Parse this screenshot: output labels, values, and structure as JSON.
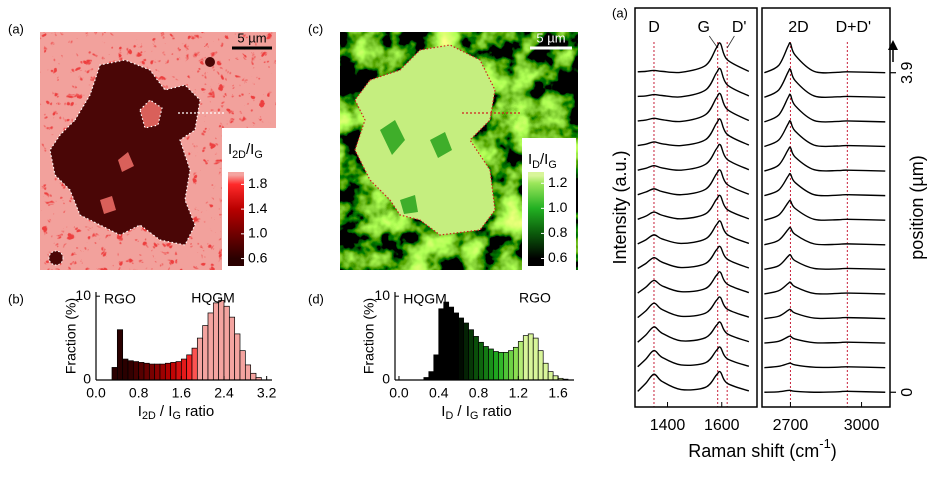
{
  "chart_data": [
    {
      "type": "map",
      "label": "(a)",
      "scale_bar": "5 µm",
      "scale_bar_color": "#000000",
      "colorbar_title": [
        "I",
        "2D",
        "/I",
        "G"
      ],
      "clim": [
        0.48,
        2.0
      ],
      "colorbar_ticks": [
        0.6,
        {
          "value": 1,
          "label": "1.0"
        },
        1.4,
        1.8
      ],
      "colormap": [
        {
          "value": 0.6,
          "color": "#2a0000"
        },
        {
          "value": 1,
          "color": "#700000"
        },
        {
          "value": 1.4,
          "color": "#b80000"
        },
        {
          "value": 1.8,
          "color": "#ff2a2a"
        },
        {
          "value": 1.95,
          "color": "#f4a4a0"
        }
      ]
    },
    {
      "type": "histogram",
      "label": "(b)",
      "ylabel": "Fraction (%)",
      "xlabel": [
        "I",
        "2D",
        " / I",
        "G",
        " ratio"
      ],
      "annotations": [
        "RGO",
        "HQGM"
      ],
      "bins": [
        0.3,
        0.4,
        0.5,
        0.6,
        0.7,
        0.8,
        0.9,
        1.0,
        1.1,
        1.2,
        1.3,
        1.4,
        1.5,
        1.6,
        1.7,
        1.8,
        1.9,
        2.0,
        2.1,
        2.2,
        2.3,
        2.4,
        2.5,
        2.6,
        2.7,
        2.8,
        2.9,
        3.0,
        3.1
      ],
      "values": [
        1.5,
        6,
        2.5,
        2.3,
        2.2,
        2.1,
        2.0,
        1.9,
        1.9,
        1.9,
        2.0,
        2.1,
        2.2,
        2.5,
        3.0,
        3.8,
        5.0,
        6.5,
        8.0,
        9.2,
        9.5,
        8.8,
        7.5,
        5.5,
        3.5,
        1.8,
        0.8,
        0.3
      ],
      "xlim": [
        0,
        3.3
      ],
      "xticks": [
        {
          "value": 0,
          "label": "0.0"
        },
        0.8,
        1.6,
        2.4,
        3.2
      ],
      "ylim": [
        0,
        10.5
      ],
      "yticks": [
        0,
        10
      ],
      "edgecolor": "#000000"
    },
    {
      "type": "map",
      "label": "(c)",
      "scale_bar": "5 µm",
      "scale_bar_color": "#ffffff",
      "colorbar_title": [
        "I",
        "D",
        "/I",
        "G"
      ],
      "clim": [
        0.54,
        1.29
      ],
      "colorbar_ticks": [
        0.6,
        0.8,
        {
          "value": 1,
          "label": "1.0"
        },
        1.2
      ],
      "colormap": [
        {
          "value": 0.6,
          "color": "#000000"
        },
        {
          "value": 0.8,
          "color": "#0b5a0b"
        },
        {
          "value": 1,
          "color": "#22b022"
        },
        {
          "value": 1.2,
          "color": "#9be65a"
        },
        {
          "value": 1.26,
          "color": "#d8f59a"
        }
      ]
    },
    {
      "type": "histogram",
      "label": "(d)",
      "ylabel": "Fraction (%)",
      "xlabel": [
        "I",
        "D",
        " / I",
        "G",
        " ratio"
      ],
      "annotations": [
        "HQGM",
        "RGO"
      ],
      "bins": [
        0.25,
        0.3,
        0.35,
        0.4,
        0.45,
        0.5,
        0.55,
        0.6,
        0.65,
        0.7,
        0.75,
        0.8,
        0.85,
        0.9,
        0.95,
        1.0,
        1.05,
        1.1,
        1.15,
        1.2,
        1.25,
        1.3,
        1.35,
        1.4,
        1.45,
        1.5,
        1.55,
        1.6,
        1.65,
        1.7
      ],
      "values": [
        0.3,
        1,
        3,
        8.5,
        9.3,
        8.7,
        8.0,
        7.4,
        6.8,
        6.0,
        5.2,
        4.5,
        4.0,
        3.7,
        3.4,
        3.3,
        3.3,
        3.5,
        3.9,
        4.6,
        5.3,
        5.5,
        5.0,
        3.5,
        2.0,
        1.0,
        0.5,
        0.2,
        0.1
      ],
      "xlim": [
        -0.04,
        1.76
      ],
      "xticks": [
        {
          "value": 0,
          "label": "0.0"
        },
        0.4,
        0.8,
        1.2,
        1.6
      ],
      "ylim": [
        0,
        10.5
      ],
      "yticks": [
        0,
        10
      ],
      "edgecolor": "#000000"
    },
    {
      "type": "spectra",
      "label": "(a)",
      "ylabel": "Intensity (a.u.)",
      "y2label": "position (µm)",
      "xlabel": [
        "Raman shift (cm",
        "-1",
        ")"
      ],
      "color": "#000000",
      "peak_color": "#c8203a",
      "ylim": [
        -0.18,
        4.69
      ],
      "yticks": [
        0,
        3.9
      ],
      "positions": [
        0,
        0.3,
        0.6,
        0.9,
        1.2,
        1.5,
        1.8,
        2.1,
        2.4,
        2.7,
        3.0,
        3.3,
        3.6,
        3.9
      ],
      "panels": [
        {
          "xlim": [
            1280,
            1730
          ],
          "xticks": [
            1400,
            1600
          ],
          "peaks": [
            {
              "label": "D",
              "x": 1350
            },
            {
              "label": "G",
              "x": 1585
            },
            {
              "label": "D'",
              "x": 1620
            }
          ],
          "x": [
            1290,
            1320,
            1350,
            1380,
            1450,
            1540,
            1580,
            1595,
            1620,
            1700
          ],
          "series": [
            {
              "values": [
                0.02,
                0.2,
                0.4,
                0.24,
                0.06,
                0.11,
                0.38,
                0.45,
                0.2,
                0.03
              ]
            },
            {
              "values": [
                0.02,
                0.19,
                0.38,
                0.23,
                0.06,
                0.11,
                0.38,
                0.45,
                0.2,
                0.03
              ]
            },
            {
              "values": [
                0.02,
                0.18,
                0.36,
                0.22,
                0.05,
                0.12,
                0.39,
                0.46,
                0.21,
                0.03
              ]
            },
            {
              "values": [
                0.02,
                0.17,
                0.34,
                0.2,
                0.05,
                0.12,
                0.4,
                0.47,
                0.21,
                0.03
              ]
            },
            {
              "values": [
                0.02,
                0.15,
                0.3,
                0.18,
                0.05,
                0.12,
                0.41,
                0.48,
                0.22,
                0.03
              ]
            },
            {
              "values": [
                0.02,
                0.13,
                0.26,
                0.16,
                0.04,
                0.13,
                0.43,
                0.5,
                0.23,
                0.03
              ]
            },
            {
              "values": [
                0.02,
                0.11,
                0.22,
                0.13,
                0.03,
                0.13,
                0.44,
                0.52,
                0.23,
                0.03
              ]
            },
            {
              "values": [
                0.02,
                0.09,
                0.18,
                0.11,
                0.03,
                0.14,
                0.46,
                0.54,
                0.24,
                0.03
              ]
            },
            {
              "values": [
                0.02,
                0.08,
                0.15,
                0.09,
                0.02,
                0.14,
                0.48,
                0.56,
                0.25,
                0.03
              ]
            },
            {
              "values": [
                0.02,
                0.06,
                0.12,
                0.07,
                0.02,
                0.15,
                0.49,
                0.58,
                0.26,
                0.03
              ]
            },
            {
              "values": [
                0.02,
                0.05,
                0.1,
                0.06,
                0.02,
                0.15,
                0.51,
                0.6,
                0.27,
                0.03
              ]
            },
            {
              "values": [
                0.02,
                0.04,
                0.08,
                0.05,
                0.01,
                0.16,
                0.53,
                0.62,
                0.28,
                0.03
              ]
            },
            {
              "values": [
                0.02,
                0.03,
                0.06,
                0.04,
                0.01,
                0.16,
                0.54,
                0.63,
                0.28,
                0.03
              ]
            },
            {
              "values": [
                0.02,
                0.03,
                0.05,
                0.03,
                0.01,
                0.16,
                0.55,
                0.65,
                0.29,
                0.03
              ]
            }
          ]
        },
        {
          "xlim": [
            2580,
            3120
          ],
          "xticks": [
            2700,
            3000
          ],
          "peaks": [
            {
              "label": "2D",
              "x": 2700
            },
            {
              "label": "D+D'",
              "x": 2940
            }
          ],
          "x": [
            2590,
            2650,
            2690,
            2700,
            2720,
            2800,
            2900,
            2940,
            3100
          ],
          "series": [
            {
              "values": [
                0,
                0.01,
                0.04,
                0.04,
                0.02,
                0,
                0.01,
                0.02,
                0
              ]
            },
            {
              "values": [
                0,
                0.03,
                0.09,
                0.1,
                0.06,
                0.01,
                0.01,
                0.02,
                0
              ]
            },
            {
              "values": [
                0,
                0.04,
                0.14,
                0.15,
                0.09,
                0.01,
                0.01,
                0.02,
                0
              ]
            },
            {
              "values": [
                0,
                0.05,
                0.18,
                0.2,
                0.12,
                0.01,
                0.01,
                0.02,
                0
              ]
            },
            {
              "values": [
                0,
                0.07,
                0.23,
                0.26,
                0.16,
                0.01,
                0.01,
                0.02,
                0
              ]
            },
            {
              "values": [
                0,
                0.08,
                0.29,
                0.32,
                0.19,
                0.02,
                0.01,
                0.02,
                0
              ]
            },
            {
              "values": [
                0,
                0.1,
                0.34,
                0.38,
                0.23,
                0.02,
                0.01,
                0.02,
                0
              ]
            },
            {
              "values": [
                0,
                0.11,
                0.39,
                0.43,
                0.26,
                0.02,
                0.01,
                0.02,
                0
              ]
            },
            {
              "values": [
                0,
                0.12,
                0.43,
                0.48,
                0.29,
                0.02,
                0.01,
                0.02,
                0
              ]
            },
            {
              "values": [
                0,
                0.13,
                0.47,
                0.52,
                0.31,
                0.03,
                0.01,
                0.02,
                0
              ]
            },
            {
              "values": [
                0,
                0.14,
                0.5,
                0.56,
                0.34,
                0.03,
                0.01,
                0.02,
                0
              ]
            },
            {
              "values": [
                0,
                0.15,
                0.54,
                0.6,
                0.36,
                0.03,
                0.01,
                0.02,
                0
              ]
            },
            {
              "values": [
                0,
                0.16,
                0.56,
                0.62,
                0.37,
                0.03,
                0.01,
                0.02,
                0
              ]
            },
            {
              "values": [
                0,
                0.16,
                0.59,
                0.65,
                0.39,
                0.03,
                0.01,
                0.02,
                0
              ]
            }
          ]
        }
      ]
    }
  ]
}
